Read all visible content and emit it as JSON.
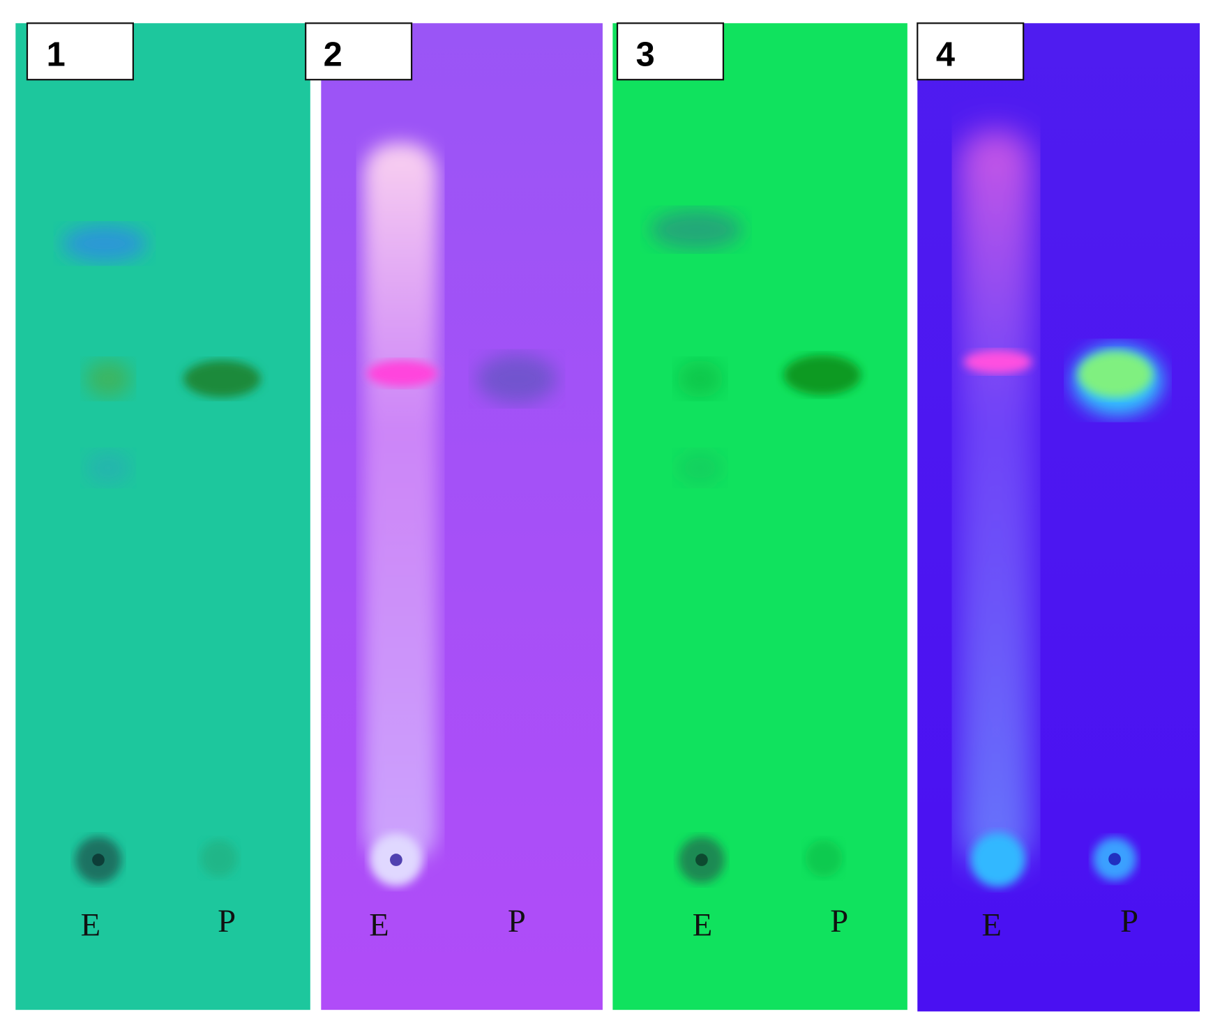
{
  "panels": [
    {
      "label": "1",
      "lanes": [
        "E",
        "P"
      ]
    },
    {
      "label": "2",
      "lanes": [
        "E",
        "P"
      ]
    },
    {
      "label": "3",
      "lanes": [
        "E",
        "P"
      ]
    },
    {
      "label": "4",
      "lanes": [
        "E",
        "P"
      ]
    }
  ]
}
